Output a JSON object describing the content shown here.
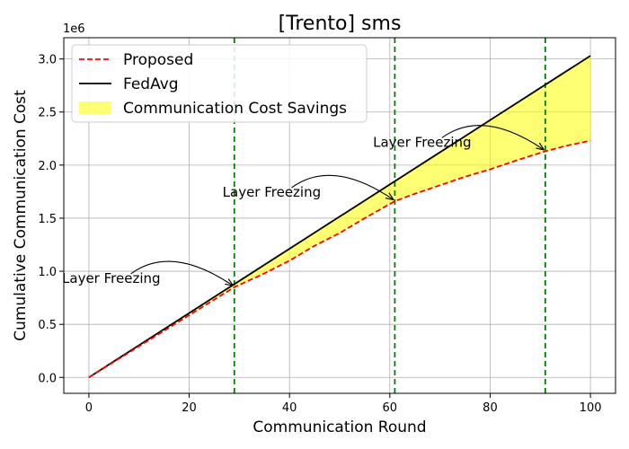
{
  "chart_data": {
    "type": "line",
    "title": "[Trento] sms",
    "xlabel": "Communication Round",
    "ylabel": "Cumulative Communication Cost",
    "y_offset_label": "1e6",
    "xlim": [
      -5,
      105
    ],
    "ylim": [
      -0.15,
      3.2
    ],
    "y_scale": 1000000,
    "xticks": [
      0,
      20,
      40,
      60,
      80,
      100
    ],
    "xtick_labels": [
      "0",
      "20",
      "40",
      "60",
      "80",
      "100"
    ],
    "yticks": [
      0.0,
      0.5,
      1.0,
      1.5,
      2.0,
      2.5,
      3.0
    ],
    "ytick_labels": [
      "0.0",
      "0.5",
      "1.0",
      "1.5",
      "2.0",
      "2.5",
      "3.0"
    ],
    "grid": true,
    "legend_position": "top-left",
    "series": [
      {
        "name": "Proposed",
        "style": "dashed",
        "color": "#ff0000",
        "x": [
          0,
          29,
          35,
          40,
          45,
          50,
          55,
          61,
          65,
          70,
          75,
          80,
          85,
          91,
          95,
          100
        ],
        "y": [
          0.0,
          0.85,
          0.98,
          1.1,
          1.24,
          1.36,
          1.5,
          1.66,
          1.73,
          1.81,
          1.89,
          1.96,
          2.04,
          2.13,
          2.18,
          2.23
        ]
      },
      {
        "name": "FedAvg",
        "style": "solid",
        "color": "#000000",
        "x": [
          0,
          100
        ],
        "y": [
          0.0,
          3.03
        ]
      }
    ],
    "fill_between": {
      "name": "Communication Cost Savings",
      "color": "#ffff00",
      "opacity": 0.55
    },
    "vlines": {
      "x": [
        29,
        61,
        91
      ],
      "color": "#008000",
      "style": "dashed"
    },
    "annotations": [
      {
        "text": "Layer Freezing",
        "x": 29,
        "y": 0.85
      },
      {
        "text": "Layer Freezing",
        "x": 61,
        "y": 1.66
      },
      {
        "text": "Layer Freezing",
        "x": 91,
        "y": 2.13
      }
    ]
  }
}
